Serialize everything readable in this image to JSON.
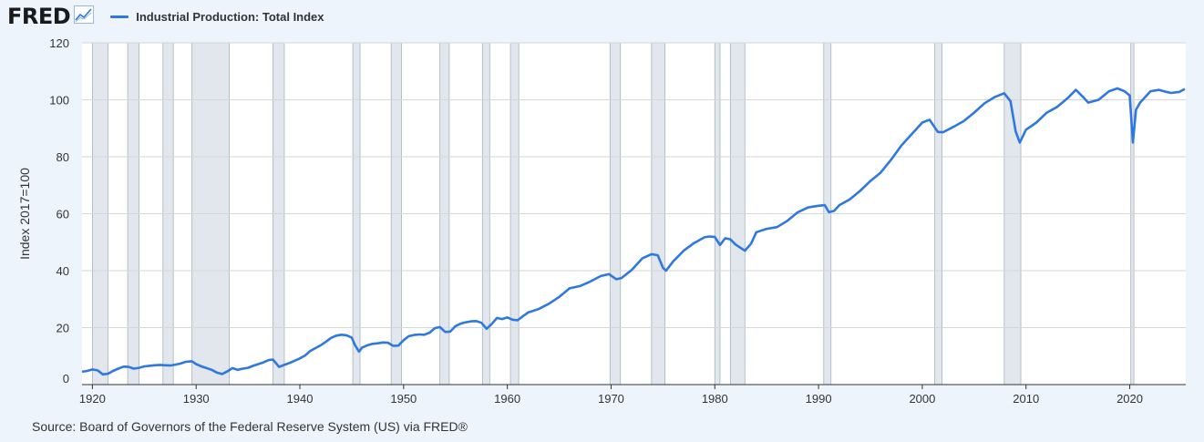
{
  "header": {
    "logo_text": "FRED",
    "logo_icon": "line-chart-icon"
  },
  "source": "Source: Board of Governors of the Federal Reserve System (US) via FRED®",
  "colors": {
    "series": "#2f78e0",
    "recession": "#e1e7ed",
    "background": "#eef4fb",
    "plot": "#ffffff",
    "grid": "#d6d6d6"
  },
  "chart_data": {
    "type": "line",
    "title": "",
    "xlabel": "",
    "ylabel": "Index 2017=100",
    "xlim": [
      1919.0,
      2025.4
    ],
    "ylim": [
      0,
      120
    ],
    "y_ticks": [
      0,
      20,
      40,
      60,
      80,
      100,
      120
    ],
    "x_ticks": [
      1920,
      1930,
      1940,
      1950,
      1960,
      1970,
      1980,
      1990,
      2000,
      2010,
      2020
    ],
    "grid": true,
    "legend_position": "top-left",
    "recessions": [
      [
        1920.0,
        1921.5
      ],
      [
        1923.4,
        1924.5
      ],
      [
        1926.8,
        1927.8
      ],
      [
        1929.6,
        1933.2
      ],
      [
        1937.4,
        1938.5
      ],
      [
        1945.1,
        1945.8
      ],
      [
        1948.8,
        1949.8
      ],
      [
        1953.5,
        1954.4
      ],
      [
        1957.6,
        1958.3
      ],
      [
        1960.3,
        1961.1
      ],
      [
        1969.9,
        1970.9
      ],
      [
        1973.9,
        1975.2
      ],
      [
        1980.0,
        1980.5
      ],
      [
        1981.5,
        1982.9
      ],
      [
        1990.5,
        1991.2
      ],
      [
        2001.2,
        2001.9
      ],
      [
        2007.9,
        2009.5
      ],
      [
        2020.1,
        2020.4
      ]
    ],
    "series": [
      {
        "name": "Industrial Production: Total Index",
        "x": [
          1919.0,
          1919.5,
          1920.0,
          1920.5,
          1921.0,
          1921.5,
          1922.0,
          1922.5,
          1923.0,
          1923.5,
          1924.0,
          1924.5,
          1925.0,
          1925.5,
          1926.0,
          1926.5,
          1927.0,
          1927.5,
          1928.0,
          1928.5,
          1929.0,
          1929.6,
          1930.0,
          1930.5,
          1931.0,
          1931.5,
          1932.0,
          1932.5,
          1933.0,
          1933.5,
          1934.0,
          1934.5,
          1935.0,
          1935.5,
          1936.0,
          1936.5,
          1937.0,
          1937.4,
          1938.0,
          1938.5,
          1939.0,
          1939.5,
          1940.0,
          1940.5,
          1941.0,
          1941.5,
          1942.0,
          1942.5,
          1943.0,
          1943.5,
          1944.0,
          1944.5,
          1945.0,
          1945.3,
          1945.7,
          1946.0,
          1946.5,
          1947.0,
          1947.5,
          1948.0,
          1948.5,
          1949.0,
          1949.5,
          1950.0,
          1950.5,
          1951.0,
          1951.5,
          1952.0,
          1952.5,
          1953.0,
          1953.5,
          1954.0,
          1954.5,
          1955.0,
          1955.5,
          1956.0,
          1956.5,
          1957.0,
          1957.5,
          1958.0,
          1958.5,
          1959.0,
          1959.5,
          1960.0,
          1960.5,
          1961.0,
          1961.5,
          1962.0,
          1963.0,
          1964.0,
          1965.0,
          1966.0,
          1967.0,
          1968.0,
          1969.0,
          1969.8,
          1970.5,
          1971.0,
          1972.0,
          1973.0,
          1973.9,
          1974.5,
          1975.0,
          1975.3,
          1976.0,
          1977.0,
          1978.0,
          1979.0,
          1979.5,
          1980.0,
          1980.5,
          1981.0,
          1981.5,
          1982.0,
          1982.9,
          1983.5,
          1984.0,
          1985.0,
          1986.0,
          1987.0,
          1988.0,
          1989.0,
          1990.0,
          1990.6,
          1991.0,
          1991.5,
          1992.0,
          1993.0,
          1994.0,
          1995.0,
          1996.0,
          1997.0,
          1998.0,
          1999.0,
          2000.0,
          2000.7,
          2001.5,
          2002.0,
          2003.0,
          2004.0,
          2005.0,
          2006.0,
          2007.0,
          2007.9,
          2008.5,
          2009.0,
          2009.4,
          2010.0,
          2011.0,
          2012.0,
          2013.0,
          2014.0,
          2014.8,
          2015.5,
          2016.0,
          2017.0,
          2018.0,
          2018.8,
          2019.5,
          2020.0,
          2020.3,
          2020.6,
          2021.0,
          2021.5,
          2022.0,
          2022.8,
          2023.5,
          2024.0,
          2024.8,
          2025.3
        ],
        "values": [
          4.5,
          4.8,
          5.3,
          5.0,
          3.6,
          3.8,
          4.8,
          5.6,
          6.3,
          6.2,
          5.6,
          5.9,
          6.4,
          6.6,
          6.8,
          6.9,
          6.8,
          6.7,
          7.0,
          7.4,
          8.0,
          8.2,
          7.2,
          6.4,
          5.8,
          5.2,
          4.2,
          3.7,
          4.6,
          5.8,
          5.2,
          5.6,
          5.9,
          6.6,
          7.2,
          7.8,
          8.6,
          8.8,
          6.2,
          6.9,
          7.6,
          8.4,
          9.2,
          10.2,
          11.8,
          12.8,
          13.8,
          15.0,
          16.4,
          17.2,
          17.5,
          17.3,
          16.5,
          14.0,
          11.6,
          13.0,
          13.8,
          14.3,
          14.5,
          14.8,
          14.7,
          13.6,
          13.7,
          15.6,
          17.0,
          17.4,
          17.6,
          17.5,
          18.2,
          19.8,
          20.2,
          18.5,
          18.6,
          20.5,
          21.4,
          21.9,
          22.2,
          22.3,
          21.7,
          19.6,
          21.3,
          23.4,
          23.0,
          23.6,
          22.8,
          22.6,
          24.0,
          25.3,
          26.5,
          28.4,
          30.8,
          33.8,
          34.6,
          36.2,
          38.1,
          38.8,
          37.0,
          37.4,
          40.3,
          44.3,
          45.8,
          45.4,
          41.0,
          40.0,
          43.3,
          47.0,
          49.7,
          51.7,
          52.0,
          51.8,
          49.0,
          51.4,
          51.0,
          49.2,
          47.0,
          49.5,
          53.5,
          54.7,
          55.3,
          57.5,
          60.5,
          62.2,
          62.8,
          63.0,
          60.5,
          61.0,
          63.0,
          65.0,
          68.0,
          71.5,
          74.5,
          79.0,
          84.0,
          88.0,
          92.0,
          93.0,
          88.7,
          88.6,
          90.5,
          92.5,
          95.5,
          98.8,
          101.0,
          102.3,
          99.5,
          89.0,
          85.0,
          89.5,
          92.0,
          95.5,
          97.5,
          100.5,
          103.5,
          101.0,
          99.0,
          100.0,
          103.0,
          104.0,
          103.0,
          101.5,
          85.0,
          96.5,
          99.0,
          101.0,
          103.0,
          103.5,
          102.8,
          102.4,
          102.8,
          103.8
        ]
      }
    ]
  }
}
